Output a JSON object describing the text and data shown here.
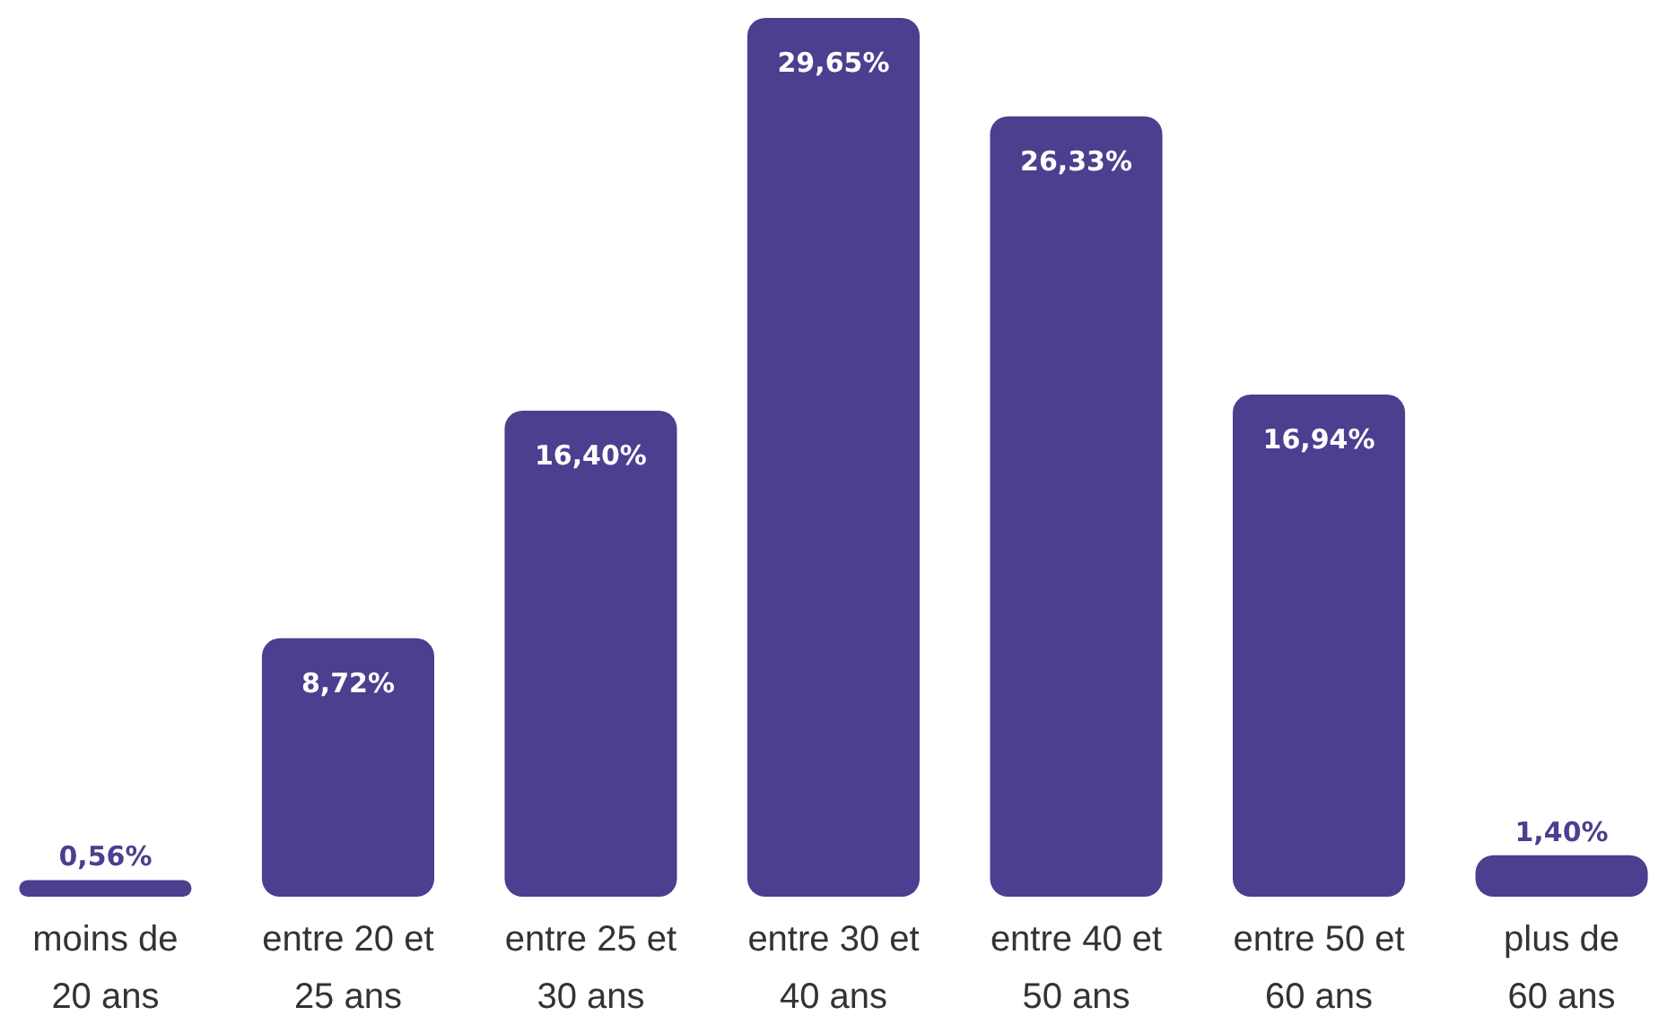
{
  "chart_data": {
    "type": "bar",
    "categories": [
      "moins de 20 ans",
      "entre 20 et 25 ans",
      "entre 25 et 30 ans",
      "entre 30 et 40 ans",
      "entre 40 et 50 ans",
      "entre 50 et 60 ans",
      "plus de 60 ans"
    ],
    "values": [
      0.56,
      8.72,
      16.4,
      29.65,
      26.33,
      16.94,
      1.4
    ],
    "value_labels": [
      "0,56%",
      "8,72%",
      "16,40%",
      "29,65%",
      "26,33%",
      "16,94%",
      "1,40%"
    ],
    "color": "#4b3f8f"
  }
}
